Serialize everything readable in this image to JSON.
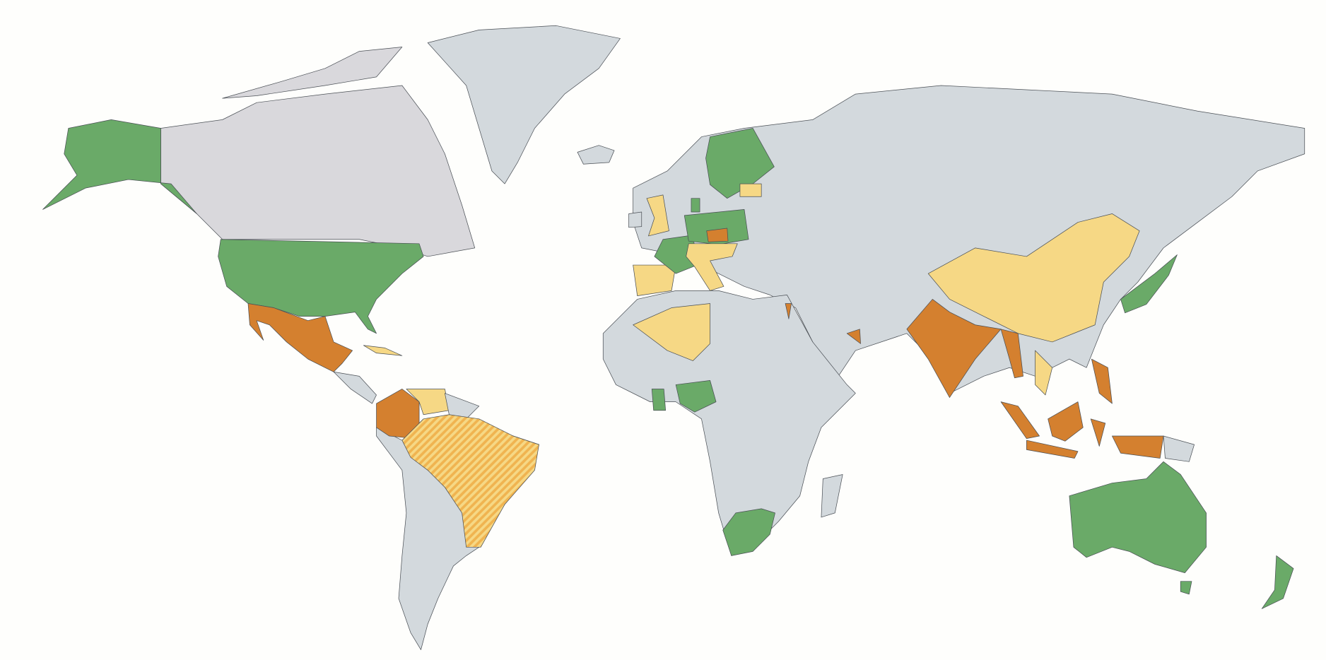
{
  "map": {
    "type": "choropleth",
    "projection": "world",
    "background": "#fefefc",
    "colors": {
      "green": "#6aaa68",
      "orange": "#d4802f",
      "yellow": "#f6d885",
      "hatched": "#f0b450",
      "hatch_line": "#f6d885",
      "no_data": "#d3d9dd",
      "canada": "#d9d8dc"
    },
    "country_categories": {
      "USA": "green",
      "ALASKA": "green",
      "CAN": "canada",
      "GRL": "no_data",
      "ISL": "no_data",
      "MEX": "orange",
      "CUB": "yellow",
      "CAM": "no_data",
      "COL": "orange",
      "VEN": "yellow",
      "GUY": "no_data",
      "BRA": "hatched",
      "SAM": "no_data",
      "AFR": "no_data",
      "DZA": "yellow",
      "NGA": "green",
      "GHA": "green",
      "ZAF": "green",
      "MDG": "no_data",
      "EURASIA": "no_data",
      "ESP": "yellow",
      "FRA": "green",
      "GBR": "yellow",
      "IRL": "no_data",
      "SWE_FIN": "green",
      "DEU_POL": "green",
      "CZE": "orange",
      "ITA_AUT_HUN": "yellow",
      "DNK": "green",
      "EST": "yellow",
      "ISR": "orange",
      "ARE": "orange",
      "IND": "orange",
      "THA_MMR": "orange",
      "VNM": "yellow",
      "CHN": "yellow",
      "JPN": "green",
      "IDN_SUM": "orange",
      "IDN_BOR": "orange",
      "IDN_JAV": "orange",
      "IDN_SUL": "orange",
      "PHL": "orange",
      "IDN_PAP": "orange",
      "PNG": "no_data",
      "AUS": "green",
      "TAS": "green",
      "NZL": "green"
    }
  }
}
